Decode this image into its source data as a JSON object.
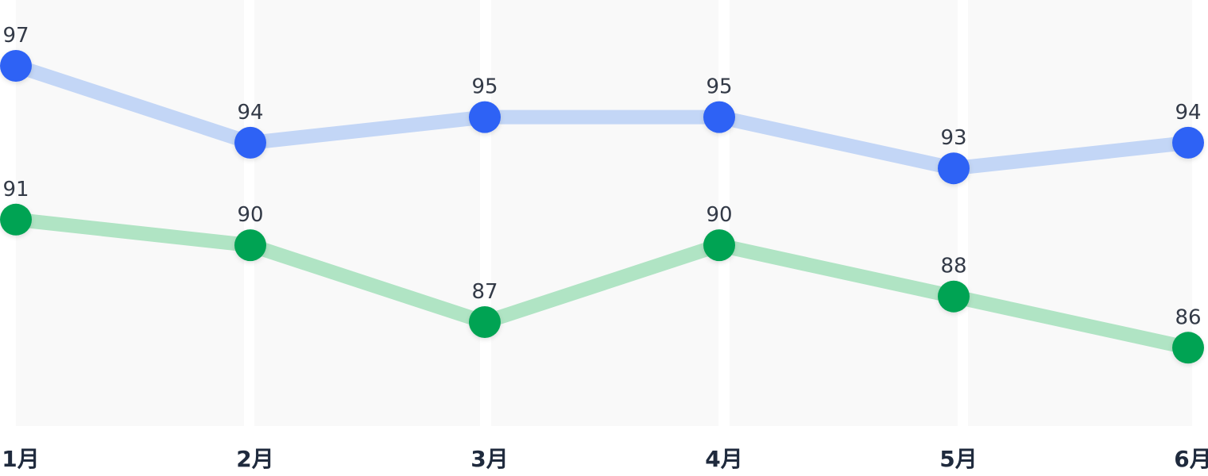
{
  "chart_data": {
    "type": "line",
    "categories": [
      "1月",
      "2月",
      "3月",
      "4月",
      "5月",
      "6月"
    ],
    "series": [
      {
        "values": [
          97,
          94,
          95,
          95,
          93,
          94
        ],
        "color": "#2e62f5",
        "line_color": "#c3d6f6"
      },
      {
        "values": [
          91,
          90,
          87,
          90,
          88,
          86
        ],
        "color": "#00a352",
        "line_color": "#b0e4c4"
      }
    ],
    "data_labels": true,
    "grid": "alternating-column-bands",
    "legend": "none"
  }
}
